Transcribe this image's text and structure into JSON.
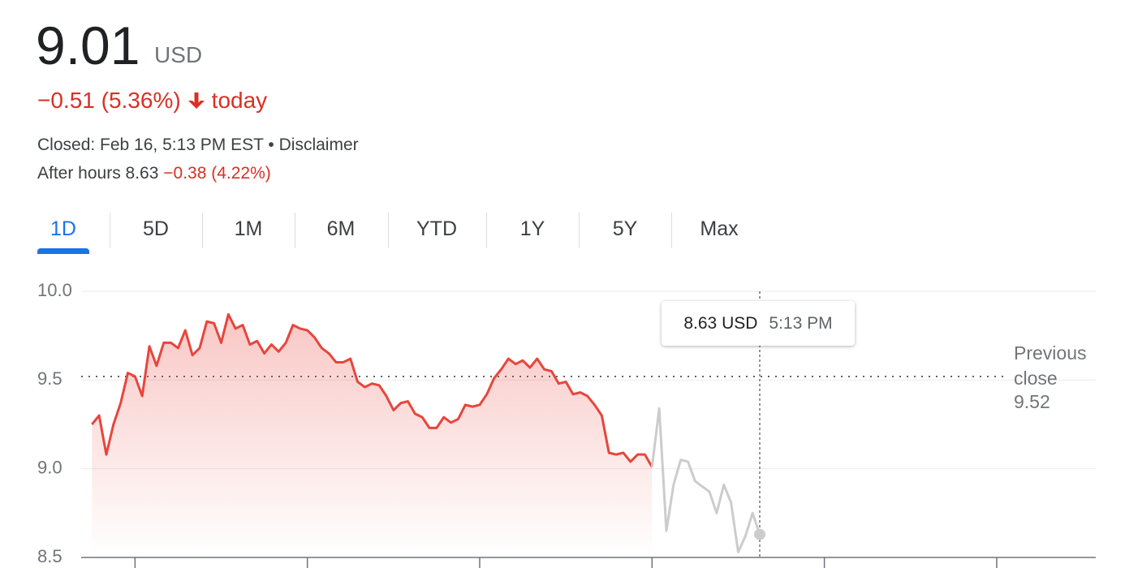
{
  "header": {
    "price": "9.01",
    "currency": "USD",
    "change": "−0.51 (5.36%)",
    "change_period": "today",
    "closed": "Closed: Feb 16, 5:13 PM EST •",
    "disclaimer": "Disclaimer",
    "after_hours": "After hours 8.63",
    "after_hours_change": "−0.38 (4.22%)"
  },
  "tabs": [
    "1D",
    "5D",
    "1M",
    "6M",
    "YTD",
    "1Y",
    "5Y",
    "Max"
  ],
  "active_tab": 0,
  "chart_data": {
    "type": "line",
    "x": [
      0,
      1,
      2,
      3,
      4,
      5,
      6,
      7,
      8,
      9,
      10,
      11,
      12,
      13,
      14,
      15,
      16,
      17,
      18,
      19,
      20,
      21,
      22,
      23,
      24,
      25,
      26,
      27,
      28,
      29,
      30,
      31,
      32,
      33,
      34,
      35,
      36,
      37,
      38,
      39,
      40,
      41,
      42,
      43,
      44,
      45,
      46,
      47,
      48,
      49,
      50,
      51,
      52,
      53,
      54,
      55,
      56,
      57,
      58,
      59,
      60,
      61,
      62,
      63,
      64,
      65,
      66,
      67,
      68,
      69,
      70,
      71,
      72,
      73,
      74,
      75,
      76,
      77,
      78,
      79,
      80,
      81,
      82,
      83,
      84,
      85,
      86,
      87,
      88,
      89,
      90,
      91,
      92,
      93
    ],
    "xlim": [
      -1.5,
      139.8
    ],
    "xticks": [
      6,
      30,
      54,
      78,
      102,
      126
    ],
    "ylim": [
      8.5,
      10.0
    ],
    "yticks": [
      {
        "value": 10,
        "label": "10.0"
      },
      9.5,
      {
        "value": 9,
        "label": "9.0"
      },
      8.5
    ],
    "grid": true,
    "series": [
      {
        "color": "#e8453c",
        "area": true,
        "values": [
          9.25,
          9.3,
          9.08,
          9.25,
          9.37,
          9.54,
          9.52,
          9.41,
          9.69,
          9.58,
          9.71,
          9.71,
          9.68,
          9.78,
          9.64,
          9.68,
          9.83,
          9.82,
          9.71,
          9.87,
          9.79,
          9.81,
          9.7,
          9.72,
          9.65,
          9.7,
          9.66,
          9.71,
          9.81,
          9.79,
          9.78,
          9.74,
          9.68,
          9.65,
          9.6,
          9.6,
          9.62,
          9.49,
          9.46,
          9.48,
          9.47,
          9.41,
          9.33,
          9.37,
          9.38,
          9.31,
          9.29,
          9.23,
          9.23,
          9.29,
          9.26,
          9.28,
          9.36,
          9.35,
          9.36,
          9.42,
          9.51,
          9.56,
          9.62,
          9.59,
          9.61,
          9.57,
          9.62,
          9.56,
          9.55,
          9.48,
          9.49,
          9.42,
          9.43,
          9.41,
          9.36,
          9.3,
          9.09,
          9.08,
          9.09,
          9.04,
          9.08,
          9.08,
          9.01,
          null,
          null,
          null,
          null,
          null,
          null,
          null,
          null,
          null,
          null,
          null,
          null,
          null,
          null,
          null
        ]
      },
      {
        "color": "#cccccc",
        "area": false,
        "values": [
          null,
          null,
          null,
          null,
          null,
          null,
          null,
          null,
          null,
          null,
          null,
          null,
          null,
          null,
          null,
          null,
          null,
          null,
          null,
          null,
          null,
          null,
          null,
          null,
          null,
          null,
          null,
          null,
          null,
          null,
          null,
          null,
          null,
          null,
          null,
          null,
          null,
          null,
          null,
          null,
          null,
          null,
          null,
          null,
          null,
          null,
          null,
          null,
          null,
          null,
          null,
          null,
          null,
          null,
          null,
          null,
          null,
          null,
          null,
          null,
          null,
          null,
          null,
          null,
          null,
          null,
          null,
          null,
          null,
          null,
          null,
          null,
          null,
          null,
          null,
          null,
          null,
          null,
          9.01,
          9.34,
          8.65,
          8.91,
          9.05,
          9.04,
          8.93,
          8.9,
          8.87,
          8.75,
          8.91,
          8.81,
          8.53,
          8.62,
          8.75,
          8.63
        ]
      }
    ],
    "previous_close": {
      "label": "Previous close",
      "value": 9.52
    },
    "tooltip": {
      "price": "8.63 USD",
      "time": "5:13 PM"
    }
  }
}
